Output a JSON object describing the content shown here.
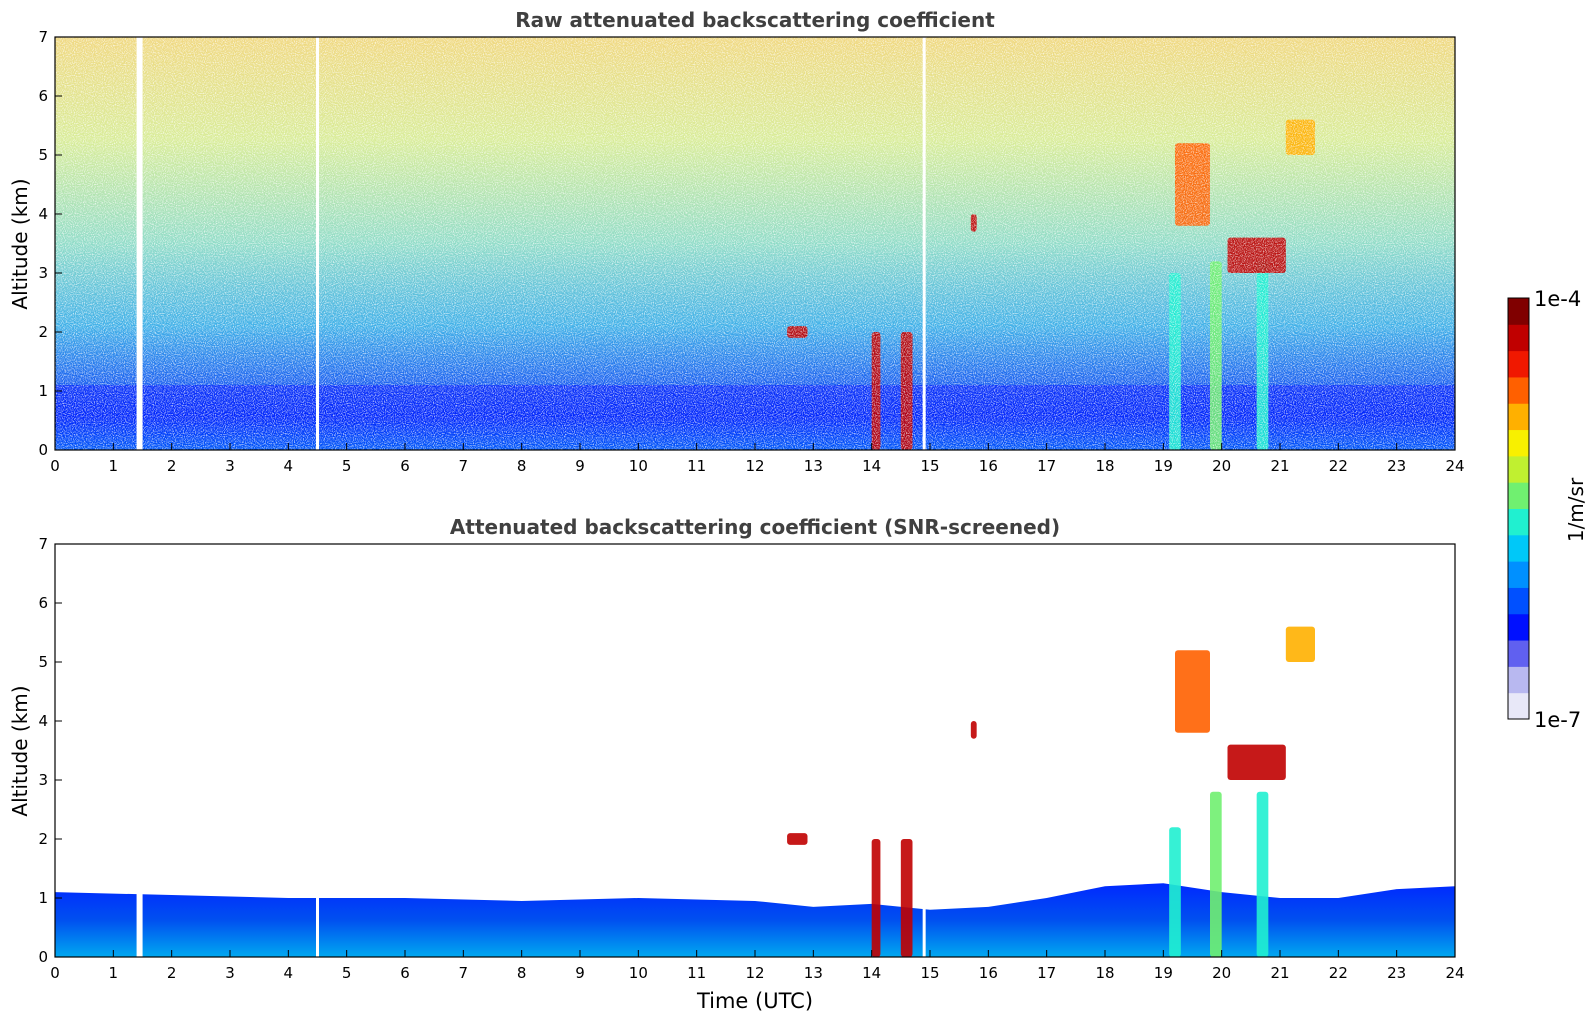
{
  "chart_data": [
    {
      "type": "heatmap",
      "title": "Raw attenuated backscattering coefficient",
      "xlabel": "",
      "ylabel": "Altitude (km)",
      "xlim": [
        0,
        24
      ],
      "ylim": [
        0,
        7
      ],
      "xticks": [
        "0",
        "1",
        "2",
        "3",
        "4",
        "5",
        "6",
        "7",
        "8",
        "9",
        "10",
        "11",
        "12",
        "13",
        "14",
        "15",
        "16",
        "17",
        "18",
        "19",
        "20",
        "21",
        "22",
        "23",
        "24"
      ],
      "yticks": [
        "0",
        "1",
        "2",
        "3",
        "4",
        "5",
        "6",
        "7"
      ],
      "color_scale": {
        "min": "1e-7",
        "max": "1e-4",
        "unit": "1/m/sr",
        "colormap": "jet",
        "log": true
      },
      "data_gaps_utc": [
        1.45,
        4.5,
        14.9
      ],
      "features": [
        {
          "t0": 0,
          "t1": 24,
          "z0": 0,
          "z1": 1.1,
          "level": 0.2
        },
        {
          "t0": 14.0,
          "t1": 14.15,
          "z0": 0,
          "z1": 2.0,
          "level": 0.95
        },
        {
          "t0": 14.5,
          "t1": 14.7,
          "z0": 0,
          "z1": 2.0,
          "level": 0.95
        },
        {
          "t0": 19.1,
          "t1": 19.3,
          "z0": 0,
          "z1": 3.0,
          "level": 0.45
        },
        {
          "t0": 19.8,
          "t1": 20.0,
          "z0": 0,
          "z1": 3.2,
          "level": 0.5
        },
        {
          "t0": 20.6,
          "t1": 20.8,
          "z0": 0,
          "z1": 3.2,
          "level": 0.45
        },
        {
          "t0": 20.1,
          "t1": 21.1,
          "z0": 3.0,
          "z1": 3.6,
          "level": 0.95
        },
        {
          "t0": 19.2,
          "t1": 19.8,
          "z0": 3.8,
          "z1": 5.2,
          "level": 0.8
        },
        {
          "t0": 21.1,
          "t1": 21.6,
          "z0": 5.0,
          "z1": 5.6,
          "level": 0.75
        },
        {
          "t0": 12.55,
          "t1": 12.9,
          "z0": 1.9,
          "z1": 2.1,
          "level": 0.9
        },
        {
          "t0": 15.7,
          "t1": 15.8,
          "z0": 3.7,
          "z1": 4.0,
          "level": 0.9
        }
      ]
    },
    {
      "type": "heatmap",
      "title": "Attenuated backscattering coefficient (SNR-screened)",
      "xlabel": "Time (UTC)",
      "ylabel": "Altitude (km)",
      "xlim": [
        0,
        24
      ],
      "ylim": [
        0,
        7
      ],
      "xticks": [
        "0",
        "1",
        "2",
        "3",
        "4",
        "5",
        "6",
        "7",
        "8",
        "9",
        "10",
        "11",
        "12",
        "13",
        "14",
        "15",
        "16",
        "17",
        "18",
        "19",
        "20",
        "21",
        "22",
        "23",
        "24"
      ],
      "yticks": [
        "0",
        "1",
        "2",
        "3",
        "4",
        "5",
        "6",
        "7"
      ],
      "color_scale": {
        "min": "1e-7",
        "max": "1e-4",
        "unit": "1/m/sr",
        "colormap": "jet",
        "log": true
      },
      "data_gaps_utc": [
        1.45,
        4.5,
        14.9
      ],
      "boundary_layer_top_km": [
        [
          0,
          1.1
        ],
        [
          2,
          1.05
        ],
        [
          4,
          1.0
        ],
        [
          6,
          1.0
        ],
        [
          8,
          0.95
        ],
        [
          10,
          1.0
        ],
        [
          12,
          0.95
        ],
        [
          13,
          0.85
        ],
        [
          14,
          0.9
        ],
        [
          15,
          0.8
        ],
        [
          16,
          0.85
        ],
        [
          17,
          1.0
        ],
        [
          18,
          1.2
        ],
        [
          19,
          1.25
        ],
        [
          20,
          1.1
        ],
        [
          21,
          1.0
        ],
        [
          22,
          1.0
        ],
        [
          23,
          1.15
        ],
        [
          24,
          1.2
        ]
      ],
      "features": [
        {
          "t0": 14.0,
          "t1": 14.15,
          "z0": 0,
          "z1": 2.0,
          "level": 0.95
        },
        {
          "t0": 14.5,
          "t1": 14.7,
          "z0": 0,
          "z1": 2.0,
          "level": 0.95
        },
        {
          "t0": 19.1,
          "t1": 19.3,
          "z0": 0,
          "z1": 2.2,
          "level": 0.45
        },
        {
          "t0": 19.8,
          "t1": 20.0,
          "z0": 0,
          "z1": 2.8,
          "level": 0.5
        },
        {
          "t0": 20.6,
          "t1": 20.8,
          "z0": 0,
          "z1": 2.8,
          "level": 0.45
        },
        {
          "t0": 20.1,
          "t1": 21.1,
          "z0": 3.0,
          "z1": 3.6,
          "level": 0.95
        },
        {
          "t0": 19.2,
          "t1": 19.8,
          "z0": 3.8,
          "z1": 5.2,
          "level": 0.8
        },
        {
          "t0": 21.1,
          "t1": 21.6,
          "z0": 5.0,
          "z1": 5.6,
          "level": 0.75
        },
        {
          "t0": 12.55,
          "t1": 12.9,
          "z0": 1.9,
          "z1": 2.1,
          "level": 0.9
        },
        {
          "t0": 15.7,
          "t1": 15.8,
          "z0": 3.7,
          "z1": 4.0,
          "level": 0.9
        }
      ]
    }
  ],
  "colorbar": {
    "label": "1/m/sr",
    "max_label": "1e-4",
    "min_label": "1e-7",
    "colors": [
      "#e8e8f8",
      "#b8b8f0",
      "#6060f0",
      "#0010ff",
      "#0050ff",
      "#0090ff",
      "#00c8f8",
      "#20f0d0",
      "#70f070",
      "#c0f030",
      "#f8f000",
      "#ffb000",
      "#ff6000",
      "#f01800",
      "#c00000",
      "#800000"
    ]
  }
}
